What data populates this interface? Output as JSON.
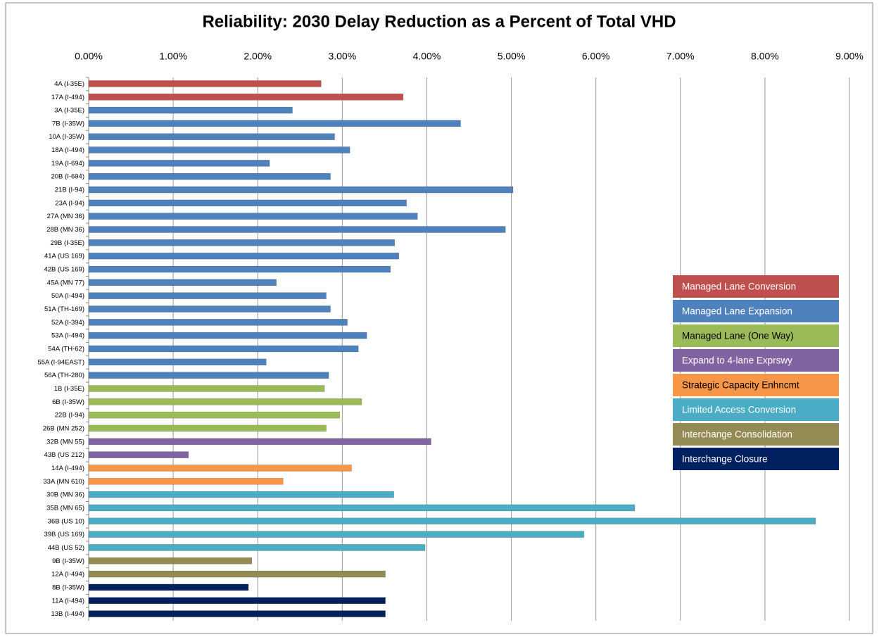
{
  "chart_data": {
    "type": "bar",
    "orientation": "horizontal",
    "title": "Reliability:  2030 Delay Reduction as a Percent of Total VHD",
    "categories": [
      "4A (I-35E)",
      "17A (I-494)",
      "3A (I-35E)",
      "7B (I-35W)",
      "10A (I-35W)",
      "18A (I-494)",
      "19A (I-694)",
      "20B (I-694)",
      "21B (I-94)",
      "23A (I-94)",
      "27A (MN 36)",
      "28B (MN 36)",
      "29B (I-35E)",
      "41A (US 169)",
      "42B (US 169)",
      "45A (MN 77)",
      "50A (I-494)",
      "51A (TH-169)",
      "52A (I-394)",
      "53A (I-494)",
      "54A (TH-62)",
      "55A (I-94EAST)",
      "56A (TH-280)",
      "1B (I-35E)",
      "6B (I-35W)",
      "22B (I-94)",
      "26B (MN 252)",
      "32B (MN 55)",
      "43B (US 212)",
      "14A (I-494)",
      "33A (MN 610)",
      "30B (MN 36)",
      "35B (MN 65)",
      "36B (US 10)",
      "39B (US 169)",
      "44B (US 52)",
      "9B (I-35W)",
      "12A (I-494)",
      "8B (I-35W)",
      "11A (I-494)",
      "13B (I-494)"
    ],
    "series": [
      {
        "name": "Managed Lane Conversion",
        "color": "#c0504d",
        "values": [
          2.75,
          3.72,
          null,
          null,
          null,
          null,
          null,
          null,
          null,
          null,
          null,
          null,
          null,
          null,
          null,
          null,
          null,
          null,
          null,
          null,
          null,
          null,
          null,
          null,
          null,
          null,
          null,
          null,
          null,
          null,
          null,
          null,
          null,
          null,
          null,
          null,
          null,
          null,
          null,
          null,
          null
        ]
      },
      {
        "name": "Managed Lane Expansion",
        "color": "#4f81bd",
        "values": [
          null,
          null,
          2.41,
          4.4,
          2.91,
          3.09,
          2.14,
          2.86,
          5.02,
          3.76,
          3.89,
          4.93,
          3.62,
          3.67,
          3.57,
          2.22,
          2.81,
          2.86,
          3.06,
          3.29,
          3.19,
          2.1,
          2.84,
          null,
          null,
          null,
          null,
          null,
          null,
          null,
          null,
          null,
          null,
          null,
          null,
          null,
          null,
          null,
          null,
          null,
          null
        ]
      },
      {
        "name": "Managed Lane (One Way)",
        "color": "#9bbb59",
        "values": [
          null,
          null,
          null,
          null,
          null,
          null,
          null,
          null,
          null,
          null,
          null,
          null,
          null,
          null,
          null,
          null,
          null,
          null,
          null,
          null,
          null,
          null,
          null,
          2.79,
          3.23,
          2.97,
          2.81,
          null,
          null,
          null,
          null,
          null,
          null,
          null,
          null,
          null,
          null,
          null,
          null,
          null,
          null
        ]
      },
      {
        "name": "Expand to 4-lane Exprswy",
        "color": "#8064a2",
        "values": [
          null,
          null,
          null,
          null,
          null,
          null,
          null,
          null,
          null,
          null,
          null,
          null,
          null,
          null,
          null,
          null,
          null,
          null,
          null,
          null,
          null,
          null,
          null,
          null,
          null,
          null,
          null,
          4.05,
          1.18,
          null,
          null,
          null,
          null,
          null,
          null,
          null,
          null,
          null,
          null,
          null,
          null
        ]
      },
      {
        "name": "Strategic Capacity Enhncmt",
        "color": "#f79646",
        "values": [
          null,
          null,
          null,
          null,
          null,
          null,
          null,
          null,
          null,
          null,
          null,
          null,
          null,
          null,
          null,
          null,
          null,
          null,
          null,
          null,
          null,
          null,
          null,
          null,
          null,
          null,
          null,
          null,
          null,
          3.11,
          2.3,
          null,
          null,
          null,
          null,
          null,
          null,
          null,
          null,
          null,
          null
        ]
      },
      {
        "name": "Limited Access Conversion",
        "color": "#4bacc6",
        "values": [
          null,
          null,
          null,
          null,
          null,
          null,
          null,
          null,
          null,
          null,
          null,
          null,
          null,
          null,
          null,
          null,
          null,
          null,
          null,
          null,
          null,
          null,
          null,
          null,
          null,
          null,
          null,
          null,
          null,
          null,
          null,
          3.61,
          6.46,
          8.6,
          5.86,
          3.98,
          null,
          null,
          null,
          null,
          null
        ]
      },
      {
        "name": "Interchange Consolidation",
        "color": "#948a54",
        "values": [
          null,
          null,
          null,
          null,
          null,
          null,
          null,
          null,
          null,
          null,
          null,
          null,
          null,
          null,
          null,
          null,
          null,
          null,
          null,
          null,
          null,
          null,
          null,
          null,
          null,
          null,
          null,
          null,
          null,
          null,
          null,
          null,
          null,
          null,
          null,
          null,
          1.93,
          3.51,
          null,
          null,
          null
        ]
      },
      {
        "name": "Interchange Closure",
        "color": "#002060",
        "values": [
          null,
          null,
          null,
          null,
          null,
          null,
          null,
          null,
          null,
          null,
          null,
          null,
          null,
          null,
          null,
          null,
          null,
          null,
          null,
          null,
          null,
          null,
          null,
          null,
          null,
          null,
          null,
          null,
          null,
          null,
          null,
          null,
          null,
          null,
          null,
          null,
          null,
          null,
          1.89,
          3.51,
          3.51
        ]
      }
    ],
    "xlim": [
      0,
      9
    ],
    "xticks": [
      {
        "value": 0,
        "label": "0.00%"
      },
      {
        "value": 1,
        "label": "1.00%"
      },
      {
        "value": 2,
        "label": "2.00%"
      },
      {
        "value": 3,
        "label": "3.00%"
      },
      {
        "value": 4,
        "label": "4.00%"
      },
      {
        "value": 5,
        "label": "5.00%"
      },
      {
        "value": 6,
        "label": "6.00%"
      },
      {
        "value": 7,
        "label": "7.00%"
      },
      {
        "value": 8,
        "label": "8.00%"
      },
      {
        "value": 9,
        "label": "9.00%"
      }
    ],
    "grid": true,
    "legend": "right"
  }
}
